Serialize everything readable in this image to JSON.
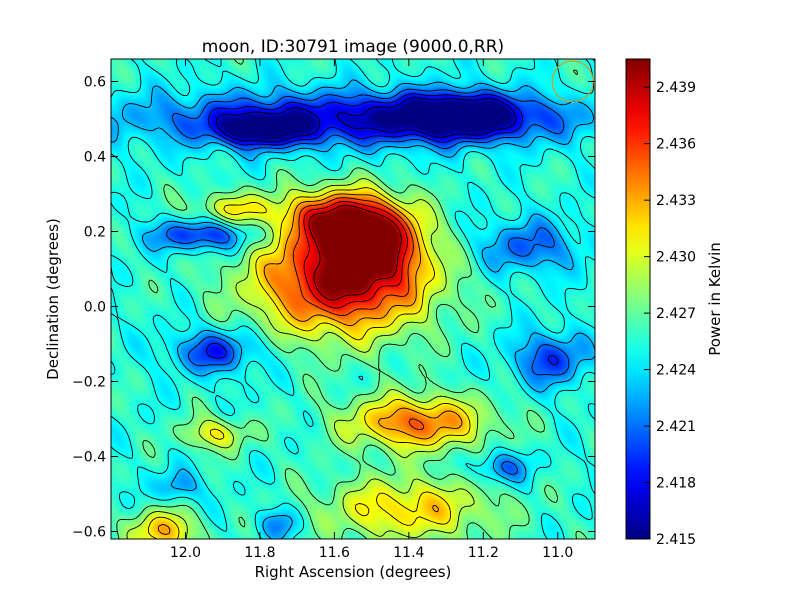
{
  "chart_data": {
    "type": "heatmap",
    "title": "moon, ID:30791 image (9000.0,RR)",
    "xlabel": "Right Ascension (degrees)",
    "ylabel": "Declination (degrees)",
    "xlim": [
      12.2,
      10.9
    ],
    "ylim": [
      -0.62,
      0.66
    ],
    "x_reversed": true,
    "x_ticks": [
      {
        "value": 12.0,
        "label": "12.0"
      },
      {
        "value": 11.8,
        "label": "11.8"
      },
      {
        "value": 11.6,
        "label": "11.6"
      },
      {
        "value": 11.4,
        "label": "11.4"
      },
      {
        "value": 11.2,
        "label": "11.2"
      },
      {
        "value": 11.0,
        "label": "11.0"
      }
    ],
    "y_ticks": [
      {
        "value": 0.6,
        "label": "0.6"
      },
      {
        "value": 0.4,
        "label": "0.4"
      },
      {
        "value": 0.2,
        "label": "0.2"
      },
      {
        "value": 0.0,
        "label": "0.0"
      },
      {
        "value": -0.2,
        "label": "−0.2"
      },
      {
        "value": -0.4,
        "label": "−0.4"
      },
      {
        "value": -0.6,
        "label": "−0.6"
      }
    ],
    "colorbar": {
      "label": "Power in Kelvin",
      "range": [
        2.415,
        2.4405
      ],
      "colormap": "jet",
      "ticks": [
        {
          "value": 2.415,
          "label": "2.415"
        },
        {
          "value": 2.418,
          "label": "2.418"
        },
        {
          "value": 2.421,
          "label": "2.421"
        },
        {
          "value": 2.424,
          "label": "2.424"
        },
        {
          "value": 2.427,
          "label": "2.427"
        },
        {
          "value": 2.43,
          "label": "2.430"
        },
        {
          "value": 2.433,
          "label": "2.433"
        },
        {
          "value": 2.436,
          "label": "2.436"
        },
        {
          "value": 2.439,
          "label": "2.439"
        }
      ]
    },
    "background_level": 2.4255,
    "features": [
      {
        "ra": 11.58,
        "dec": 0.07,
        "sigma_ra": 0.16,
        "sigma_dec": 0.1,
        "value": 2.4395
      },
      {
        "ra": 11.5,
        "dec": 0.18,
        "sigma_ra": 0.09,
        "sigma_dec": 0.07,
        "value": 2.4365
      },
      {
        "ra": 11.6,
        "dec": 0.24,
        "sigma_ra": 0.1,
        "sigma_dec": 0.05,
        "value": 2.4345
      },
      {
        "ra": 11.38,
        "dec": -0.31,
        "sigma_ra": 0.13,
        "sigma_dec": 0.05,
        "value": 2.435
      },
      {
        "ra": 11.4,
        "dec": -0.54,
        "sigma_ra": 0.16,
        "sigma_dec": 0.06,
        "value": 2.432
      },
      {
        "ra": 11.92,
        "dec": -0.34,
        "sigma_ra": 0.06,
        "sigma_dec": 0.03,
        "value": 2.431
      },
      {
        "ra": 11.87,
        "dec": 0.26,
        "sigma_ra": 0.08,
        "sigma_dec": 0.03,
        "value": 2.4305
      },
      {
        "ra": 12.06,
        "dec": -0.6,
        "sigma_ra": 0.06,
        "sigma_dec": 0.04,
        "value": 2.433
      },
      {
        "ra": 11.55,
        "dec": 0.5,
        "sigma_ra": 0.4,
        "sigma_dec": 0.05,
        "value": 2.417
      },
      {
        "ra": 11.26,
        "dec": 0.51,
        "sigma_ra": 0.12,
        "sigma_dec": 0.04,
        "value": 2.416
      },
      {
        "ra": 11.8,
        "dec": 0.47,
        "sigma_ra": 0.08,
        "sigma_dec": 0.03,
        "value": 2.417
      },
      {
        "ra": 11.95,
        "dec": 0.19,
        "sigma_ra": 0.1,
        "sigma_dec": 0.03,
        "value": 2.4185
      },
      {
        "ra": 11.92,
        "dec": -0.12,
        "sigma_ra": 0.08,
        "sigma_dec": 0.04,
        "value": 2.419
      },
      {
        "ra": 11.02,
        "dec": -0.14,
        "sigma_ra": 0.07,
        "sigma_dec": 0.05,
        "value": 2.4195
      },
      {
        "ra": 11.08,
        "dec": 0.16,
        "sigma_ra": 0.1,
        "sigma_dec": 0.05,
        "value": 2.4205
      },
      {
        "ra": 11.15,
        "dec": -0.43,
        "sigma_ra": 0.05,
        "sigma_dec": 0.03,
        "value": 2.4205
      },
      {
        "ra": 12.02,
        "dec": -0.48,
        "sigma_ra": 0.04,
        "sigma_dec": 0.03,
        "value": 2.4215
      },
      {
        "ra": 11.75,
        "dec": -0.58,
        "sigma_ra": 0.04,
        "sigma_dec": 0.03,
        "value": 2.4215
      }
    ],
    "contour_levels": [
      2.417,
      2.419,
      2.421,
      2.423,
      2.425,
      2.427,
      2.429,
      2.431,
      2.433,
      2.435,
      2.437,
      2.439
    ],
    "beam_marker": {
      "ra": 10.96,
      "dec": 0.6,
      "radius_deg": 0.055,
      "color": "#c8a02c"
    }
  }
}
